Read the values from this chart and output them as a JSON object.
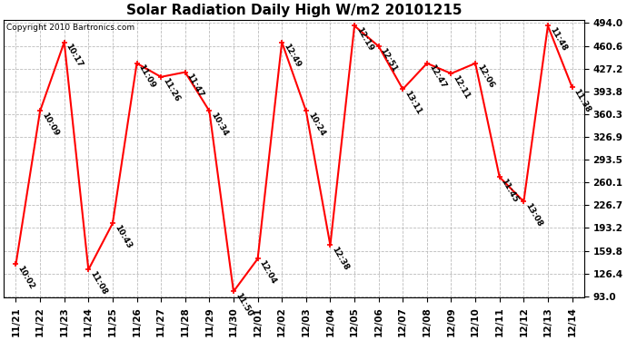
{
  "title": "Solar Radiation Daily High W/m2 20101215",
  "copyright": "Copyright 2010 Bartronics.com",
  "dates": [
    "11/21",
    "11/22",
    "11/23",
    "11/24",
    "11/25",
    "11/26",
    "11/27",
    "11/28",
    "11/29",
    "11/30",
    "12/01",
    "12/02",
    "12/03",
    "12/04",
    "12/05",
    "12/06",
    "12/07",
    "12/08",
    "12/09",
    "12/10",
    "12/11",
    "12/12",
    "12/13",
    "12/14"
  ],
  "values": [
    140,
    365,
    466,
    132,
    200,
    435,
    415,
    422,
    365,
    100,
    148,
    466,
    365,
    168,
    490,
    460,
    397,
    435,
    420,
    435,
    268,
    232,
    490,
    400
  ],
  "labels": [
    "10:02",
    "10:09",
    "10:17",
    "11:08",
    "10:43",
    "11:09",
    "11:26",
    "11:47",
    "10:34",
    "11:50",
    "12:04",
    "12:49",
    "10:24",
    "12:38",
    "12:19",
    "12:51",
    "13:11",
    "12:47",
    "12:11",
    "12:06",
    "11:45",
    "13:08",
    "11:48",
    "11:38"
  ],
  "line_color": "#ff0000",
  "marker_color": "#ff0000",
  "background_color": "#ffffff",
  "grid_color": "#bbbbbb",
  "title_fontsize": 11,
  "label_fontsize": 6.5,
  "copyright_fontsize": 6.5,
  "tick_fontsize": 7.5,
  "ylim_min": 93.0,
  "ylim_max": 494.0,
  "yticks": [
    93.0,
    126.4,
    159.8,
    193.2,
    226.7,
    260.1,
    293.5,
    326.9,
    360.3,
    393.8,
    427.2,
    460.6,
    494.0
  ]
}
